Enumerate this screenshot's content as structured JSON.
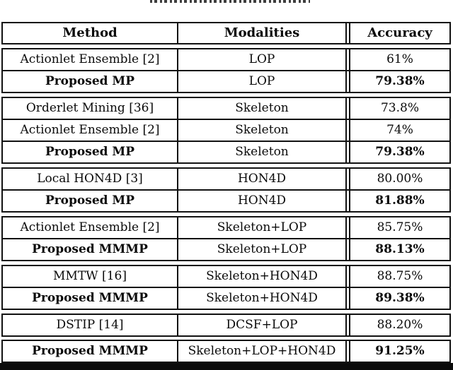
{
  "table": {
    "columns": [
      "Method",
      "Modalities",
      "Accuracy"
    ],
    "groups": [
      {
        "rows": [
          {
            "method": "Actionlet Ensemble [2]",
            "modalities": "LOP",
            "accuracy": "61%",
            "bold": false
          },
          {
            "method": "Proposed MP",
            "modalities": "LOP",
            "accuracy": "79.38%",
            "bold": true
          }
        ]
      },
      {
        "rows": [
          {
            "method": "Orderlet Mining [36]",
            "modalities": "Skeleton",
            "accuracy": "73.8%",
            "bold": false
          },
          {
            "method": "Actionlet Ensemble [2]",
            "modalities": "Skeleton",
            "accuracy": "74%",
            "bold": false
          },
          {
            "method": "Proposed MP",
            "modalities": "Skeleton",
            "accuracy": "79.38%",
            "bold": true
          }
        ]
      },
      {
        "rows": [
          {
            "method": "Local HON4D [3]",
            "modalities": "HON4D",
            "accuracy": "80.00%",
            "bold": false
          },
          {
            "method": "Proposed MP",
            "modalities": "HON4D",
            "accuracy": "81.88%",
            "bold": true
          }
        ]
      },
      {
        "rows": [
          {
            "method": "Actionlet Ensemble [2]",
            "modalities": "Skeleton+LOP",
            "accuracy": "85.75%",
            "bold": false
          },
          {
            "method": "Proposed MMMP",
            "modalities": "Skeleton+LOP",
            "accuracy": "88.13%",
            "bold": true
          }
        ]
      },
      {
        "rows": [
          {
            "method": "MMTW [16]",
            "modalities": "Skeleton+HON4D",
            "accuracy": "88.75%",
            "bold": false
          },
          {
            "method": "Proposed MMMP",
            "modalities": "Skeleton+HON4D",
            "accuracy": "89.38%",
            "bold": true
          }
        ]
      },
      {
        "rows": [
          {
            "method": "DSTIP [14]",
            "modalities": "DCSF+LOP",
            "accuracy": "88.20%",
            "bold": false
          }
        ]
      },
      {
        "rows": [
          {
            "method": "Proposed MMMP",
            "modalities": "Skeleton+LOP+HON4D",
            "accuracy": "91.25%",
            "bold": true
          }
        ]
      }
    ],
    "colors": {
      "rule": "#111111",
      "text": "#0a0a0a",
      "background": "#ffffff"
    }
  }
}
